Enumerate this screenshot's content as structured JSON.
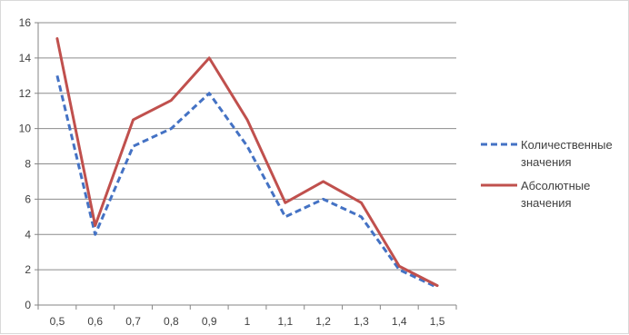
{
  "chart_data": {
    "type": "line",
    "title": "",
    "xlabel": "",
    "ylabel": "",
    "categories": [
      "0,5",
      "0,6",
      "0,7",
      "0,8",
      "0,9",
      "1",
      "1,1",
      "1,2",
      "1,3",
      "1,4",
      "1,5"
    ],
    "ylim": [
      0,
      16
    ],
    "y_ticks": [
      "0",
      "2",
      "4",
      "6",
      "8",
      "10",
      "12",
      "14",
      "16"
    ],
    "grid": true,
    "legend_position": "right",
    "series": [
      {
        "name_lines": [
          "Количественные",
          "значения"
        ],
        "values": [
          13,
          4,
          9,
          10,
          12,
          9,
          5,
          6,
          5,
          2,
          1
        ],
        "color": "#4472c4",
        "style": "dashed"
      },
      {
        "name_lines": [
          "Абсолютные",
          "значения"
        ],
        "values": [
          15.1,
          4.5,
          10.5,
          11.6,
          14,
          10.5,
          5.8,
          7,
          5.8,
          2.2,
          1.1
        ],
        "color": "#c0504d",
        "style": "solid"
      }
    ]
  }
}
